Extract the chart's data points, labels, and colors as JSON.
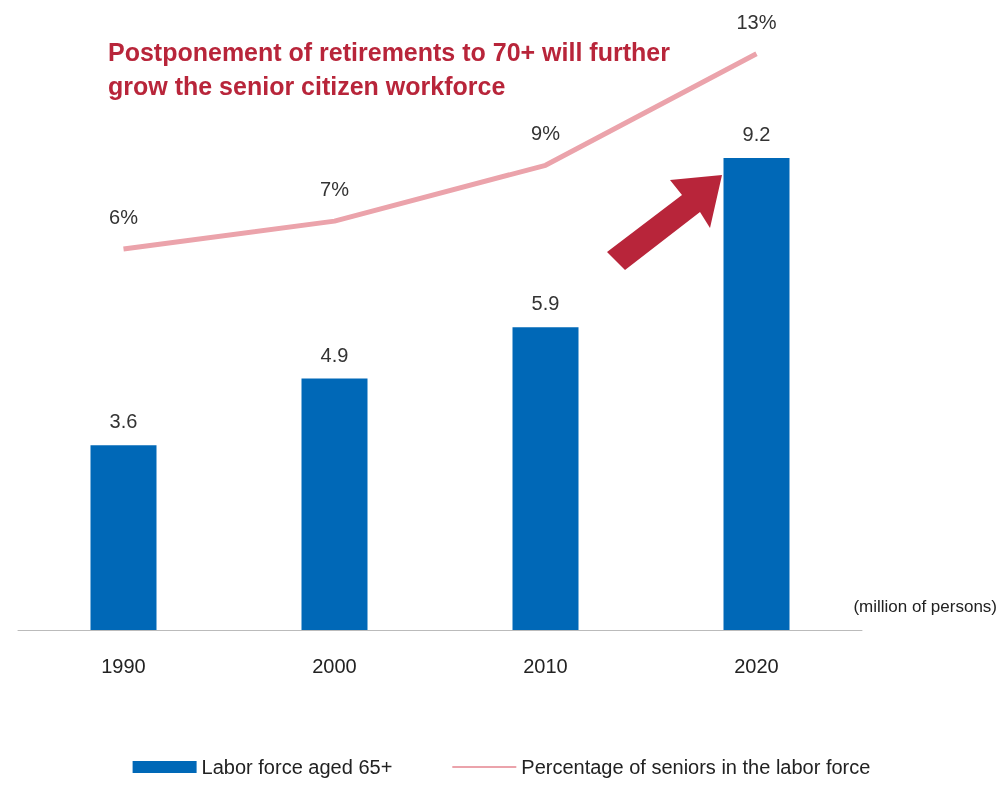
{
  "chart_data": {
    "type": "bar",
    "title": "Postponement of retirements to 70+ will further grow the senior citizen workforce",
    "categories": [
      "1990",
      "2000",
      "2010",
      "2020"
    ],
    "series": [
      {
        "name": "Labor force aged 65+",
        "color": "#0068b7",
        "values": [
          3.6,
          4.9,
          5.9,
          9.2
        ]
      },
      {
        "name": "Percentage of seniors in the labor force",
        "type": "line",
        "axis": "y2",
        "color": "#eba3ab",
        "values": [
          6,
          7,
          9,
          13
        ],
        "value_labels": [
          "6%",
          "7%",
          "9%",
          "13%"
        ]
      }
    ],
    "data_labels": true,
    "marker": "none",
    "legend": "bottom",
    "annotations": [
      "(million of persons)"
    ]
  }
}
